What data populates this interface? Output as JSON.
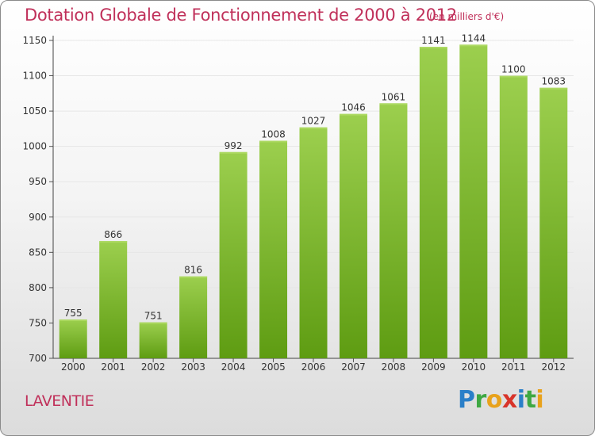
{
  "header": {
    "title": "Dotation Globale de Fonctionnement de 2000 à 2012",
    "subtitle": "(en milliers d'€)"
  },
  "footer": {
    "commune": "LAVENTIE",
    "logo_text": "Proxiti"
  },
  "colors": {
    "title": "#c0305a",
    "bar_top": "#9ccf4e",
    "bar_bottom": "#5e9c12",
    "grid": "#e6e6e6"
  },
  "chart_data": {
    "type": "bar",
    "title": "Dotation Globale de Fonctionnement de 2000 à 2012",
    "subtitle": "(en milliers d'€)",
    "xlabel": "",
    "ylabel": "",
    "categories": [
      "2000",
      "2001",
      "2002",
      "2003",
      "2004",
      "2005",
      "2006",
      "2007",
      "2008",
      "2009",
      "2010",
      "2011",
      "2012"
    ],
    "values": [
      755,
      866,
      751,
      816,
      992,
      1008,
      1027,
      1046,
      1061,
      1141,
      1144,
      1100,
      1083
    ],
    "ylim": [
      700,
      1150
    ],
    "yticks": [
      700,
      750,
      800,
      850,
      900,
      950,
      1000,
      1050,
      1100,
      1150
    ],
    "grid": true,
    "data_labels": true
  }
}
